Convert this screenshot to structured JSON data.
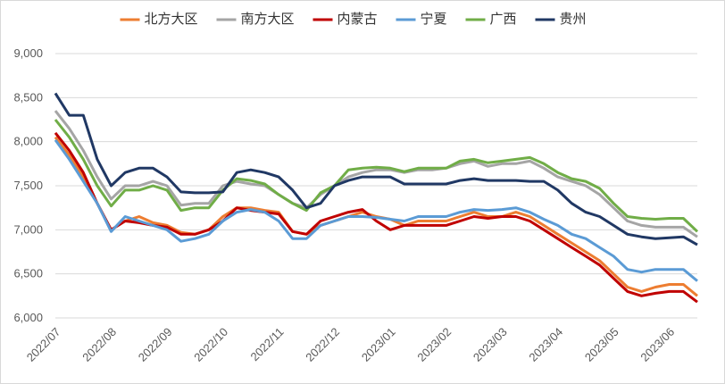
{
  "chart_data": {
    "type": "line",
    "categories": [
      "2022/07",
      null,
      null,
      null,
      "2022/08",
      null,
      null,
      null,
      "2022/09",
      null,
      null,
      null,
      "2022/10",
      null,
      null,
      null,
      "2022/11",
      null,
      null,
      null,
      "2022/12",
      null,
      null,
      null,
      "2023/01",
      null,
      null,
      null,
      "2023/02",
      null,
      null,
      null,
      "2023/03",
      null,
      null,
      null,
      "2023/04",
      null,
      null,
      null,
      "2023/05",
      null,
      null,
      null,
      "2023/06",
      null,
      null
    ],
    "ylim": [
      6000,
      9000
    ],
    "yticks": [
      {
        "value": 6000,
        "label": "6,000"
      },
      {
        "value": 6500,
        "label": "6,500"
      },
      {
        "value": 7000,
        "label": "7,000"
      },
      {
        "value": 7500,
        "label": "7,500"
      },
      {
        "value": 8000,
        "label": "8,000"
      },
      {
        "value": 8500,
        "label": "8,500"
      },
      {
        "value": 9000,
        "label": "9,000"
      }
    ],
    "grid": true,
    "legend": "top",
    "series": [
      {
        "name": "北方大区",
        "color": "#ed7d31",
        "values": [
          8050,
          7850,
          7600,
          7300,
          7000,
          7100,
          7150,
          7080,
          7050,
          6970,
          6950,
          7000,
          7150,
          7250,
          7250,
          7220,
          7200,
          6980,
          6950,
          7050,
          7100,
          7150,
          7200,
          7150,
          7120,
          7050,
          7100,
          7100,
          7100,
          7150,
          7200,
          7150,
          7150,
          7200,
          7150,
          7050,
          6950,
          6850,
          6750,
          6650,
          6500,
          6350,
          6300,
          6350,
          6380,
          6380,
          6250
        ]
      },
      {
        "name": "南方大区",
        "color": "#a5a5a5",
        "values": [
          8350,
          8150,
          7900,
          7600,
          7350,
          7500,
          7500,
          7550,
          7500,
          7280,
          7300,
          7300,
          7500,
          7550,
          7520,
          7500,
          7400,
          7300,
          7250,
          7400,
          7500,
          7600,
          7650,
          7680,
          7680,
          7650,
          7680,
          7680,
          7700,
          7750,
          7780,
          7720,
          7750,
          7750,
          7780,
          7700,
          7600,
          7550,
          7500,
          7400,
          7250,
          7100,
          7050,
          7030,
          7030,
          7030,
          6920
        ]
      },
      {
        "name": "内蒙古",
        "color": "#c00000",
        "values": [
          8100,
          7900,
          7650,
          7300,
          7000,
          7100,
          7080,
          7050,
          7030,
          6950,
          6950,
          7000,
          7100,
          7250,
          7220,
          7200,
          7180,
          6980,
          6950,
          7100,
          7150,
          7200,
          7230,
          7100,
          7000,
          7050,
          7050,
          7050,
          7050,
          7100,
          7150,
          7130,
          7150,
          7150,
          7100,
          7000,
          6900,
          6800,
          6700,
          6600,
          6450,
          6300,
          6250,
          6280,
          6300,
          6300,
          6180
        ]
      },
      {
        "name": "宁夏",
        "color": "#5b9bd5",
        "values": [
          8020,
          7800,
          7550,
          7300,
          6980,
          7150,
          7100,
          7050,
          7000,
          6870,
          6900,
          6950,
          7100,
          7200,
          7230,
          7200,
          7100,
          6900,
          6900,
          7050,
          7100,
          7150,
          7150,
          7140,
          7120,
          7100,
          7150,
          7150,
          7150,
          7200,
          7230,
          7220,
          7230,
          7250,
          7200,
          7120,
          7050,
          6950,
          6900,
          6800,
          6700,
          6550,
          6520,
          6550,
          6550,
          6550,
          6420
        ]
      },
      {
        "name": "广西",
        "color": "#70ad47",
        "values": [
          8250,
          8050,
          7800,
          7500,
          7270,
          7450,
          7450,
          7500,
          7450,
          7220,
          7250,
          7250,
          7450,
          7580,
          7560,
          7520,
          7400,
          7300,
          7220,
          7420,
          7500,
          7680,
          7700,
          7710,
          7700,
          7660,
          7700,
          7700,
          7700,
          7780,
          7800,
          7760,
          7780,
          7800,
          7820,
          7750,
          7650,
          7580,
          7550,
          7470,
          7300,
          7150,
          7130,
          7120,
          7130,
          7130,
          6980
        ]
      },
      {
        "name": "贵州",
        "color": "#203864",
        "values": [
          8550,
          8300,
          8300,
          7800,
          7500,
          7650,
          7700,
          7700,
          7600,
          7430,
          7420,
          7420,
          7430,
          7650,
          7680,
          7650,
          7600,
          7450,
          7250,
          7300,
          7500,
          7560,
          7600,
          7600,
          7600,
          7520,
          7520,
          7520,
          7520,
          7560,
          7580,
          7560,
          7560,
          7560,
          7550,
          7550,
          7450,
          7300,
          7200,
          7150,
          7050,
          6950,
          6920,
          6900,
          6910,
          6920,
          6830
        ]
      }
    ]
  }
}
